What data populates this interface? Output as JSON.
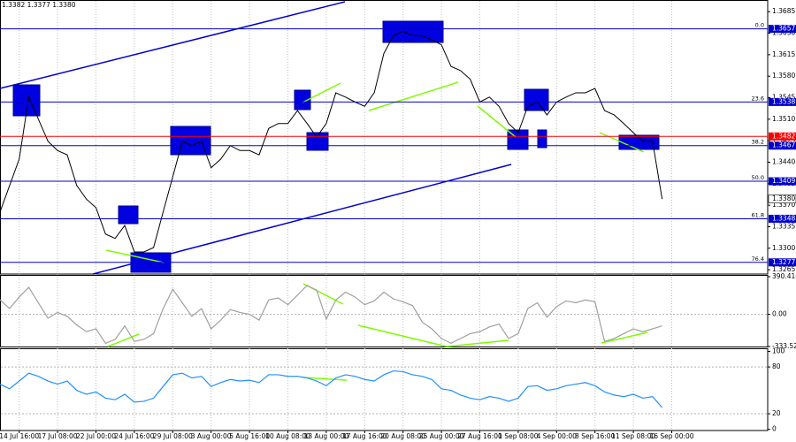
{
  "chart_data": [
    {
      "type": "line",
      "title": "1.3382 1.3377 1.3380",
      "color": "#000000",
      "grid": "x",
      "x": [
        0,
        4,
        8,
        12,
        16,
        20,
        24,
        28,
        32,
        36,
        40,
        44,
        48,
        52,
        56,
        60,
        64,
        68,
        72,
        76,
        80,
        84,
        88,
        92,
        96,
        100,
        104,
        108,
        112,
        116,
        120,
        124,
        128,
        132,
        136,
        140,
        144,
        148,
        152,
        156,
        160,
        164,
        168,
        172,
        176,
        180,
        184,
        188,
        192,
        196,
        200,
        204,
        208,
        212,
        216,
        220,
        224,
        228,
        232,
        236,
        240,
        244,
        248,
        252,
        256,
        260,
        264,
        268,
        272,
        276
      ],
      "values": [
        1.3359,
        1.3402,
        1.3445,
        1.3546,
        1.351,
        1.3474,
        1.3459,
        1.3452,
        1.3402,
        1.338,
        1.3366,
        1.3323,
        1.3316,
        1.3337,
        1.3294,
        1.3294,
        1.3301,
        1.3359,
        1.3416,
        1.3474,
        1.3467,
        1.3474,
        1.3431,
        1.3445,
        1.3467,
        1.3459,
        1.3459,
        1.3452,
        1.3495,
        1.3503,
        1.3503,
        1.3524,
        1.3503,
        1.3481,
        1.3503,
        1.3553,
        1.3546,
        1.3538,
        1.3531,
        1.3553,
        1.3617,
        1.3646,
        1.3653,
        1.3646,
        1.3646,
        1.3639,
        1.3631,
        1.3596,
        1.3589,
        1.3575,
        1.3538,
        1.3546,
        1.3531,
        1.3503,
        1.3488,
        1.3531,
        1.3538,
        1.3517,
        1.3538,
        1.3546,
        1.3553,
        1.3553,
        1.356,
        1.3524,
        1.3517,
        1.3503,
        1.3488,
        1.3474,
        1.3474,
        1.338
      ],
      "xlim": [
        0,
        320
      ],
      "xticks": [
        {
          "value": 8,
          "label": "14 Jul 16:00"
        },
        {
          "value": 24,
          "label": "17 Jul 08:00"
        },
        {
          "value": 40,
          "label": "22 Jul 00:00"
        },
        {
          "value": 56,
          "label": "24 Jul 16:00"
        },
        {
          "value": 72,
          "label": "29 Jul 08:00"
        },
        {
          "value": 88,
          "label": "3 Aug 00:00"
        },
        {
          "value": 104,
          "label": "5 Aug 16:00"
        },
        {
          "value": 120,
          "label": "10 Aug 08:00"
        },
        {
          "value": 136,
          "label": "13 Aug 00:00"
        },
        {
          "value": 152,
          "label": "17 Aug 16:00"
        },
        {
          "value": 168,
          "label": "20 Aug 08:00"
        },
        {
          "value": 184,
          "label": "25 Aug 00:00"
        },
        {
          "value": 200,
          "label": "27 Aug 16:00"
        },
        {
          "value": 216,
          "label": "1 Sep 08:00"
        },
        {
          "value": 232,
          "label": "4 Sep 00:00"
        },
        {
          "value": 248,
          "label": "8 Sep 16:00"
        },
        {
          "value": 264,
          "label": "11 Sep 08:00"
        },
        {
          "value": 280,
          "label": "16 Sep 00:00"
        }
      ],
      "ylim": [
        1.3258,
        1.3704
      ],
      "yticks": [
        1.3685,
        {
          "value": 1.365,
          "label": "1.3650"
        },
        1.3615,
        {
          "value": 1.358,
          "label": "1.3580"
        },
        1.3545,
        {
          "value": 1.351,
          "label": "1.3510"
        },
        1.3475,
        {
          "value": 1.344,
          "label": "1.3440"
        },
        1.3405,
        {
          "value": 1.337,
          "label": "1.3370"
        },
        1.3335,
        {
          "value": 1.33,
          "label": "1.3300"
        },
        1.3265
      ],
      "levels": [
        {
          "price": 1.3657,
          "fib": "0.0",
          "color": "#0000cd"
        },
        {
          "price": 1.3538,
          "fib": "23.6",
          "color": "#0000cd"
        },
        {
          "price": 1.3482,
          "color": "#ff0000"
        },
        {
          "price": 1.3467,
          "fib": "38.2",
          "color": "#0000cd"
        },
        {
          "price": 1.3409,
          "fib": "50.0",
          "color": "#0000cd"
        },
        {
          "price": 1.3348,
          "fib": "61.8",
          "color": "#0000cd"
        },
        {
          "price": 1.3277,
          "fib": "76.4",
          "color": "#0000cd"
        }
      ],
      "last_price": {
        "value": 1.338,
        "label": "1.3380"
      }
    },
    {
      "type": "line",
      "color": "#a0a0a0",
      "grid": true,
      "values": [
        150,
        60,
        180,
        280,
        120,
        -40,
        20,
        -20,
        -110,
        -180,
        -150,
        -300,
        -260,
        -120,
        -280,
        -260,
        -200,
        60,
        260,
        120,
        -20,
        60,
        -150,
        -60,
        50,
        20,
        0,
        -60,
        150,
        170,
        100,
        200,
        300,
        250,
        -50,
        150,
        230,
        180,
        100,
        140,
        230,
        160,
        130,
        90,
        -80,
        -150,
        -250,
        -300,
        -250,
        -200,
        -180,
        -130,
        -100,
        -250,
        -200,
        60,
        120,
        -30,
        80,
        140,
        120,
        150,
        130,
        -280,
        -250,
        -200,
        -150,
        -180,
        -150,
        -120
      ],
      "ylim": [
        -333.522,
        390.4163
      ],
      "yticks": [
        390.4163,
        {
          "value": 0,
          "label": "0.00"
        },
        -333.522
      ]
    },
    {
      "type": "line",
      "color": "#1e90ff",
      "grid": true,
      "values": [
        58,
        52,
        62,
        72,
        68,
        62,
        58,
        62,
        50,
        45,
        48,
        40,
        38,
        45,
        35,
        36,
        40,
        55,
        70,
        72,
        66,
        68,
        55,
        60,
        64,
        62,
        63,
        60,
        70,
        70,
        68,
        68,
        66,
        62,
        56,
        66,
        70,
        68,
        64,
        62,
        70,
        75,
        74,
        70,
        68,
        64,
        52,
        50,
        44,
        40,
        38,
        42,
        40,
        36,
        40,
        55,
        56,
        50,
        52,
        56,
        58,
        60,
        56,
        48,
        44,
        42,
        45,
        40,
        42,
        28
      ],
      "ylim": [
        0,
        100
      ],
      "yticks": [
        100,
        80,
        20,
        0
      ]
    }
  ]
}
